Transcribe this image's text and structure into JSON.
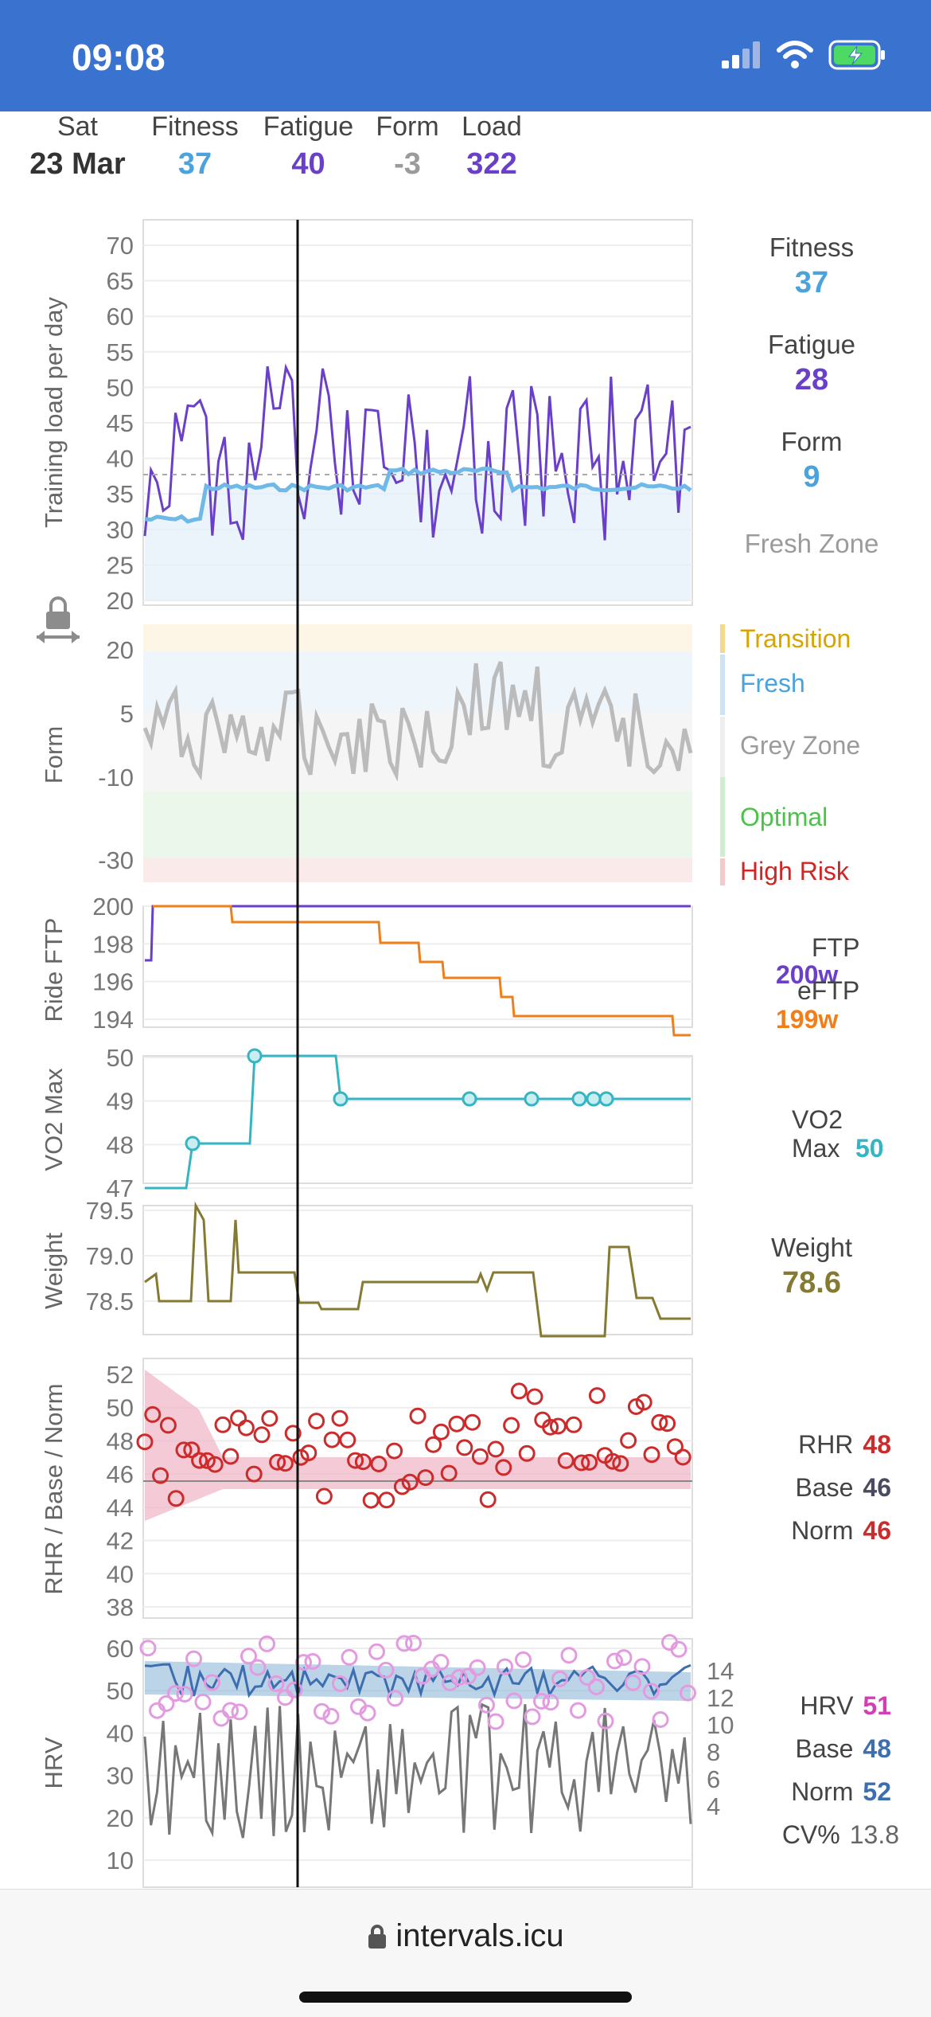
{
  "status_bar": {
    "time": "09:08"
  },
  "summary": {
    "day": "Sat",
    "date": "23 Mar",
    "fitness_label": "Fitness",
    "fitness": "37",
    "fatigue_label": "Fatigue",
    "fatigue": "40",
    "form_label": "Form",
    "form": "-3",
    "load_label": "Load",
    "load": "322"
  },
  "colors": {
    "fitness": "#4ba3dd",
    "fatigue": "#6a3fc9",
    "form_grey": "#9b9b9b",
    "ftp": "#6a3fc9",
    "eftp": "#f07f1b",
    "vo2": "#35b5c4",
    "weight": "#857a33",
    "rhr": "#cc2b2b",
    "hrv": "#d23fb5",
    "base": "#3d6fb0"
  },
  "load_chart": {
    "ylabel": "Training load per day",
    "yticks": [
      "70",
      "65",
      "60",
      "55",
      "50",
      "45",
      "40",
      "35",
      "30",
      "25",
      "20"
    ],
    "side": {
      "fitness_label": "Fitness",
      "fitness": "37",
      "fatigue_label": "Fatigue",
      "fatigue": "28",
      "form_label": "Form",
      "form": "9",
      "zone": "Fresh Zone"
    }
  },
  "form_chart": {
    "ylabel": "Form",
    "yticks": [
      "20",
      "5",
      "-10",
      "-30"
    ],
    "zones": [
      "Transition",
      "Fresh",
      "Grey Zone",
      "Optimal",
      "High Risk"
    ]
  },
  "ftp_chart": {
    "ylabel": "Ride FTP",
    "yticks": [
      "200",
      "198",
      "196",
      "194"
    ],
    "ftp_label": "FTP",
    "ftp_value": "200w",
    "eftp_label": "eFTP",
    "eftp_value": "199w"
  },
  "vo2_chart": {
    "ylabel": "VO2 Max",
    "yticks": [
      "50",
      "49",
      "48",
      "47"
    ],
    "label_line1": "VO2",
    "label_line2": "Max",
    "value": "50"
  },
  "weight_chart": {
    "ylabel": "Weight",
    "yticks": [
      "79.5",
      "79.0",
      "78.5"
    ],
    "label": "Weight",
    "value": "78.6"
  },
  "rhr_chart": {
    "ylabel": "RHR / Base / Norm",
    "yticks": [
      "52",
      "50",
      "48",
      "46",
      "44",
      "42",
      "40",
      "38"
    ],
    "rhr_label": "RHR",
    "rhr": "48",
    "base_label": "Base",
    "base": "46",
    "norm_label": "Norm",
    "norm": "46"
  },
  "hrv_chart": {
    "ylabel": "HRV",
    "yticks": [
      "60",
      "50",
      "40",
      "30",
      "20",
      "10"
    ],
    "yticks_right": [
      "14",
      "12",
      "10",
      "8",
      "6",
      "4"
    ],
    "hrv_label": "HRV",
    "hrv": "51",
    "base_label": "Base",
    "base": "48",
    "norm_label": "Norm",
    "norm": "52",
    "cv_label": "CV%",
    "cv": "13.8"
  },
  "browser": {
    "url": "intervals.icu"
  }
}
